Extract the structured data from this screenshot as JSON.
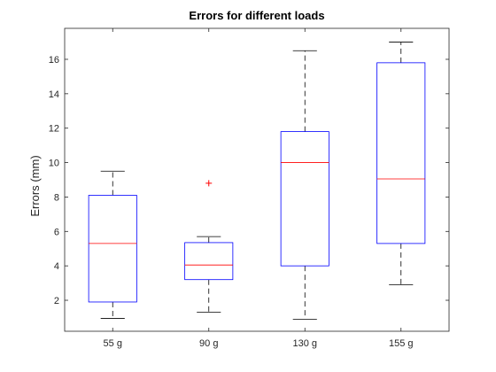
{
  "chart_data": {
    "type": "boxplot",
    "title": "Errors for different loads",
    "xlabel": "",
    "ylabel": "Errors (mm)",
    "ylim": [
      0.2,
      17.8
    ],
    "yticks": [
      2,
      4,
      6,
      8,
      10,
      12,
      14,
      16
    ],
    "grid": false,
    "categories": [
      "55 g",
      "90 g",
      "130 g",
      "155 g"
    ],
    "boxes": [
      {
        "category": "55 g",
        "whisker_low": 0.95,
        "q1": 1.9,
        "median": 5.3,
        "q3": 8.1,
        "whisker_high": 9.5,
        "outliers": []
      },
      {
        "category": "90 g",
        "whisker_low": 1.3,
        "q1": 3.2,
        "median": 4.05,
        "q3": 5.35,
        "whisker_high": 5.7,
        "outliers": [
          8.8
        ]
      },
      {
        "category": "130 g",
        "whisker_low": 0.9,
        "q1": 4.0,
        "median": 10.0,
        "q3": 11.8,
        "whisker_high": 16.5,
        "outliers": []
      },
      {
        "category": "155 g",
        "whisker_low": 2.9,
        "q1": 5.3,
        "median": 9.05,
        "q3": 15.8,
        "whisker_high": 17.0,
        "outliers": []
      }
    ],
    "colors": {
      "box": "#0000ff",
      "median": "#ff0000",
      "whisker": "#000000",
      "outlier": "#ff0000",
      "axis": "#262626"
    }
  }
}
